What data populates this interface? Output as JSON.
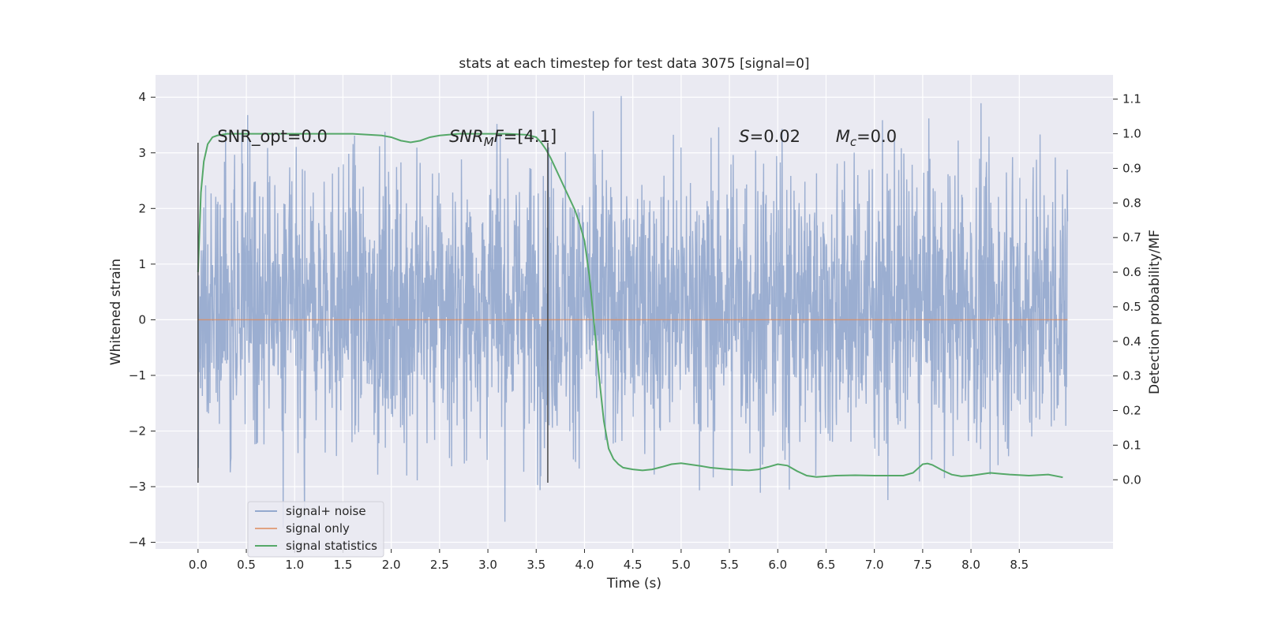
{
  "chart_data": {
    "type": "line",
    "title": "stats at each timestep for test data 3075 [signal=0]",
    "xlabel": "Time (s)",
    "ylabel": "Whitened strain",
    "y2label": "Detection probability/MF",
    "xlim": [
      -0.44,
      9.47
    ],
    "ylim": [
      -4.12,
      4.4
    ],
    "y2lim": [
      -0.2,
      1.17
    ],
    "xticks": [
      0.0,
      0.5,
      1.0,
      1.5,
      2.0,
      2.5,
      3.0,
      3.5,
      4.0,
      4.5,
      5.0,
      5.5,
      6.0,
      6.5,
      7.0,
      7.5,
      8.0,
      8.5
    ],
    "xtick_labels": [
      "0.0",
      "0.5",
      "1.0",
      "1.5",
      "2.0",
      "2.5",
      "3.0",
      "3.5",
      "4.0",
      "4.5",
      "5.0",
      "5.5",
      "6.0",
      "6.5",
      "7.0",
      "7.5",
      "8.0",
      "8.5"
    ],
    "yticks": [
      4,
      3,
      2,
      1,
      0,
      -1,
      -2,
      -3,
      -4
    ],
    "ytick_labels": [
      "4",
      "3",
      "2",
      "1",
      "0",
      "−1",
      "−2",
      "−3",
      "−4"
    ],
    "y2ticks": [
      1.1,
      1.0,
      0.9,
      0.8,
      0.7,
      0.6,
      0.5,
      0.4,
      0.3,
      0.2,
      0.1,
      0.0
    ],
    "y2tick_labels": [
      "1.1",
      "1.0",
      "0.9",
      "0.8",
      "0.7",
      "0.6",
      "0.5",
      "0.4",
      "0.3",
      "0.2",
      "0.1",
      "0.0"
    ],
    "grid": true,
    "legend_position": "lower-left",
    "colors": {
      "background": "#eaeaf2",
      "grid": "#ffffff",
      "signal_noise": "#4c72b0",
      "signal_only": "#dd8452",
      "statistics": "#55a868",
      "marker": "#3b3b3b"
    },
    "series": [
      {
        "name": "signal+ noise",
        "axis": "left",
        "style": "noise",
        "t_range": [
          0.0,
          9.0
        ],
        "typical_band": [
          -1.75,
          2.3
        ],
        "extremes": [
          -3.75,
          4.02
        ]
      },
      {
        "name": "signal only",
        "axis": "left",
        "x": [
          0.0,
          9.0
        ],
        "y": [
          0.0,
          0.0
        ]
      },
      {
        "name": "signal statistics",
        "axis": "right",
        "x": [
          0.0,
          0.03,
          0.06,
          0.1,
          0.15,
          0.2,
          0.3,
          0.5,
          0.8,
          1.0,
          1.3,
          1.6,
          1.9,
          2.0,
          2.1,
          2.2,
          2.3,
          2.4,
          2.5,
          2.7,
          3.0,
          3.2,
          3.4,
          3.5,
          3.55,
          3.6,
          3.65,
          3.7,
          3.75,
          3.8,
          3.9,
          3.95,
          4.0,
          4.05,
          4.1,
          4.15,
          4.2,
          4.25,
          4.3,
          4.35,
          4.4,
          4.5,
          4.6,
          4.7,
          4.8,
          4.9,
          5.0,
          5.1,
          5.2,
          5.3,
          5.5,
          5.7,
          5.8,
          5.9,
          6.0,
          6.1,
          6.2,
          6.3,
          6.4,
          6.5,
          6.6,
          6.8,
          7.0,
          7.2,
          7.3,
          7.4,
          7.5,
          7.55,
          7.6,
          7.7,
          7.8,
          7.9,
          8.0,
          8.2,
          8.4,
          8.6,
          8.8,
          8.95
        ],
        "y": [
          0.6,
          0.83,
          0.92,
          0.97,
          0.99,
          0.995,
          1.0,
          1.0,
          1.0,
          1.0,
          1.0,
          1.0,
          0.995,
          0.99,
          0.98,
          0.975,
          0.98,
          0.99,
          0.995,
          1.0,
          1.0,
          1.0,
          0.997,
          0.99,
          0.975,
          0.955,
          0.93,
          0.9,
          0.87,
          0.84,
          0.78,
          0.74,
          0.69,
          0.59,
          0.45,
          0.3,
          0.17,
          0.09,
          0.06,
          0.045,
          0.035,
          0.03,
          0.027,
          0.03,
          0.037,
          0.045,
          0.048,
          0.044,
          0.04,
          0.035,
          0.03,
          0.027,
          0.03,
          0.037,
          0.045,
          0.041,
          0.025,
          0.012,
          0.008,
          0.01,
          0.012,
          0.013,
          0.012,
          0.012,
          0.012,
          0.02,
          0.045,
          0.047,
          0.043,
          0.028,
          0.015,
          0.01,
          0.012,
          0.02,
          0.015,
          0.012,
          0.015,
          0.007
        ]
      }
    ],
    "vlines": [
      {
        "x": 0.0,
        "ymin": -2.93,
        "ymax": 3.18
      },
      {
        "x": 3.62,
        "ymin": -2.93,
        "ymax": 3.18
      }
    ],
    "annotations": [
      {
        "x": 0.2,
        "y": 3.18,
        "text": "SNR_opt=0.0"
      },
      {
        "x": 2.6,
        "y": 3.18,
        "italic": "SNR",
        "sub": "M",
        "italic2": "F",
        "rest": "=[4.1]"
      },
      {
        "x": 5.6,
        "y": 3.18,
        "italic": "S",
        "rest": "=0.02"
      },
      {
        "x": 6.6,
        "y": 3.18,
        "italic": "M",
        "sub": "c",
        "rest": "=0.0"
      }
    ]
  }
}
